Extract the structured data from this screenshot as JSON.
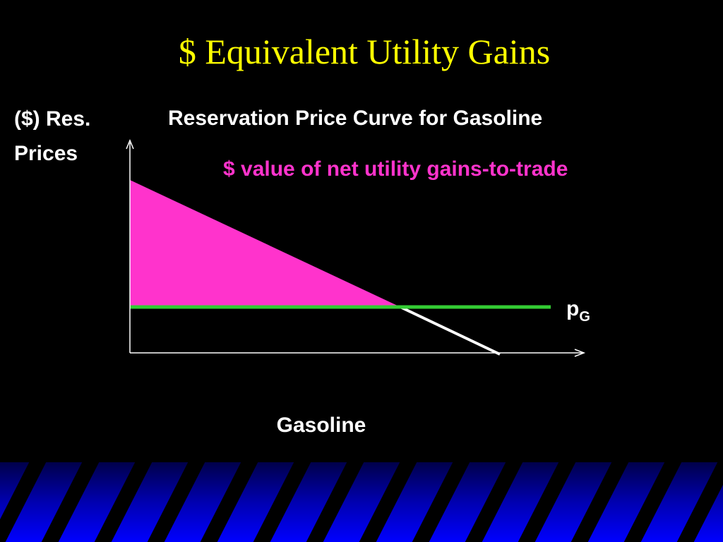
{
  "header": {
    "title": "$ Equivalent Utility Gains"
  },
  "diagram": {
    "y_axis_label": [
      "($) Res.",
      "Prices"
    ],
    "chart_title": "Reservation Price Curve for Gasoline",
    "area_label": "$ value of net utility gains-to-trade",
    "price_label": {
      "main": "p",
      "subscript": "G"
    },
    "x_axis_label": "Gasoline"
  }
}
